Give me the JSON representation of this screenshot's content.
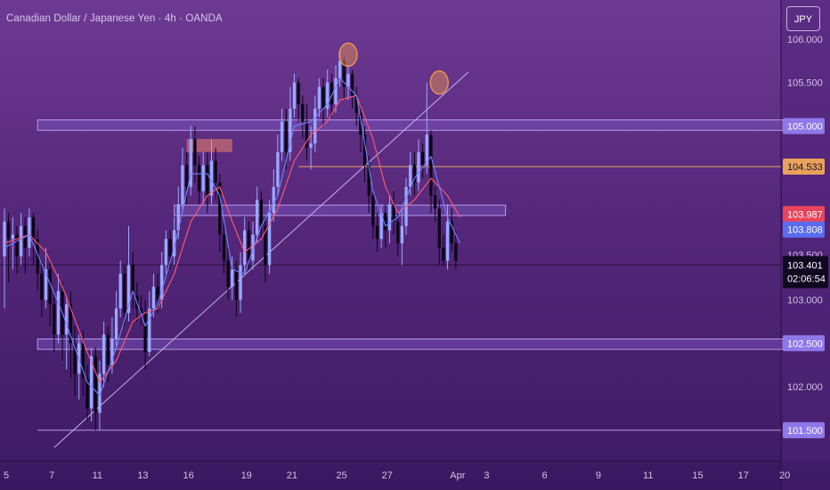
{
  "header": {
    "title": "Canadian Dollar / Japanese Yen · 4h · OANDA",
    "currency": "JPY"
  },
  "colors": {
    "bull": "#9aa8ff",
    "bear": "#0b0616",
    "ma_fast": "#6f86ff",
    "ma_slow": "#ff5b74",
    "zone_fill": "#7e58c6",
    "zone_stroke": "#b49ae8",
    "resistance_fill": "#e07a6a",
    "orange_line": "#e7a45a",
    "trendline": "#c3b2ea",
    "circle": "#f09a4e"
  },
  "chart_data": {
    "type": "candlestick",
    "title": "Canadian Dollar / Japanese Yen · 4h · OANDA",
    "ylim": [
      101.15,
      106.45
    ],
    "y_axis": {
      "unit": "JPY",
      "ticks": [
        {
          "value": 106.0,
          "label": "106.000"
        },
        {
          "value": 105.5,
          "label": "105.500"
        },
        {
          "value": 103.0,
          "label": "103.000"
        },
        {
          "value": 102.0,
          "label": "102.000"
        }
      ],
      "badges": [
        {
          "value": 105.0,
          "label": "105.000",
          "bg": "#8f78e8",
          "fg": "#ffffff"
        },
        {
          "value": 104.533,
          "label": "104.533",
          "bg": "#e8a25a",
          "fg": "#1b0d2a"
        },
        {
          "value": 103.987,
          "label": "103.987",
          "bg": "#e8445c",
          "fg": "#ffffff"
        },
        {
          "value": 103.808,
          "label": "103.808",
          "bg": "#5a6cf0",
          "fg": "#ffffff"
        },
        {
          "value": 102.5,
          "label": "102.500",
          "bg": "#8f78e8",
          "fg": "#ffffff"
        },
        {
          "value": 101.5,
          "label": "101.500",
          "bg": "#8f78e8",
          "fg": "#ffffff"
        }
      ],
      "partial_label": "103.500",
      "current": {
        "value": 103.401,
        "label": "103.401",
        "countdown": "02:06:54"
      }
    },
    "x_axis": {
      "ticks": [
        {
          "label": "5",
          "x": 0
        },
        {
          "label": "7",
          "x": 11
        },
        {
          "label": "11",
          "x": 22
        },
        {
          "label": "13",
          "x": 33
        },
        {
          "label": "16",
          "x": 44
        },
        {
          "label": "19",
          "x": 58
        },
        {
          "label": "21",
          "x": 69
        },
        {
          "label": "25",
          "x": 81
        },
        {
          "label": "27",
          "x": 92
        },
        {
          "label": "Apr",
          "x": 109
        },
        {
          "label": "3",
          "x": 116
        },
        {
          "label": "6",
          "x": 130
        },
        {
          "label": "9",
          "x": 143
        },
        {
          "label": "11",
          "x": 155
        },
        {
          "label": "15",
          "x": 167
        },
        {
          "label": "17",
          "x": 178
        },
        {
          "label": "20",
          "x": 188
        }
      ],
      "range": [
        -2,
        190
      ]
    },
    "candles": [
      [
        103.5,
        103.9,
        104.05,
        102.9
      ],
      [
        103.9,
        103.7,
        104.0,
        103.2
      ],
      [
        103.7,
        103.75,
        103.95,
        103.35
      ],
      [
        103.75,
        103.5,
        103.85,
        103.3
      ],
      [
        103.5,
        103.85,
        104.0,
        103.4
      ],
      [
        103.85,
        103.6,
        103.95,
        103.3
      ],
      [
        103.6,
        103.95,
        104.05,
        103.5
      ],
      [
        103.95,
        103.7,
        104.0,
        103.4
      ],
      [
        103.7,
        103.3,
        103.8,
        103.1
      ],
      [
        103.3,
        103.0,
        103.45,
        102.8
      ],
      [
        103.0,
        103.35,
        103.6,
        102.9
      ],
      [
        103.35,
        102.95,
        103.45,
        102.7
      ],
      [
        102.95,
        102.6,
        103.1,
        102.4
      ],
      [
        102.6,
        103.1,
        103.3,
        102.5
      ],
      [
        103.1,
        102.6,
        103.2,
        102.3
      ],
      [
        102.6,
        102.95,
        103.05,
        102.2
      ],
      [
        102.95,
        102.5,
        103.1,
        102.1
      ],
      [
        102.5,
        102.15,
        102.7,
        101.9
      ],
      [
        102.15,
        102.5,
        102.6,
        101.85
      ],
      [
        102.5,
        102.1,
        102.65,
        101.9
      ],
      [
        102.1,
        101.75,
        102.25,
        101.6
      ],
      [
        101.75,
        102.35,
        102.45,
        101.6
      ],
      [
        102.35,
        101.7,
        102.45,
        101.5
      ],
      [
        101.7,
        102.15,
        102.3,
        101.5
      ],
      [
        102.15,
        102.6,
        102.75,
        102.0
      ],
      [
        102.6,
        102.25,
        102.7,
        102.05
      ],
      [
        102.25,
        102.55,
        102.8,
        102.15
      ],
      [
        102.55,
        102.9,
        103.1,
        102.45
      ],
      [
        102.9,
        103.3,
        103.45,
        102.8
      ],
      [
        103.3,
        102.85,
        103.4,
        102.7
      ],
      [
        102.85,
        103.4,
        103.85,
        102.75
      ],
      [
        103.4,
        103.05,
        103.55,
        102.9
      ],
      [
        103.05,
        102.9,
        103.2,
        102.75
      ],
      [
        102.9,
        102.85,
        103.05,
        102.7
      ],
      [
        102.85,
        102.4,
        103.0,
        102.2
      ],
      [
        102.4,
        102.9,
        103.1,
        102.35
      ],
      [
        102.9,
        103.15,
        103.3,
        102.8
      ],
      [
        103.15,
        103.0,
        103.3,
        102.85
      ],
      [
        103.0,
        103.4,
        103.55,
        102.9
      ],
      [
        103.4,
        103.7,
        103.8,
        103.3
      ],
      [
        103.7,
        103.5,
        103.8,
        103.35
      ],
      [
        103.5,
        103.8,
        103.95,
        103.4
      ],
      [
        103.8,
        104.1,
        104.3,
        103.7
      ],
      [
        104.1,
        104.55,
        104.75,
        104.0
      ],
      [
        104.55,
        104.3,
        104.7,
        104.1
      ],
      [
        104.3,
        104.85,
        105.0,
        104.2
      ],
      [
        104.85,
        104.55,
        105.0,
        104.35
      ],
      [
        104.55,
        104.25,
        104.65,
        104.1
      ],
      [
        104.25,
        104.55,
        104.7,
        104.1
      ],
      [
        104.55,
        104.2,
        104.7,
        104.0
      ],
      [
        104.2,
        104.6,
        104.85,
        104.1
      ],
      [
        104.6,
        104.35,
        104.75,
        104.15
      ],
      [
        104.35,
        103.75,
        104.45,
        103.55
      ],
      [
        103.75,
        103.45,
        103.9,
        103.3
      ],
      [
        103.45,
        103.15,
        103.6,
        103.0
      ],
      [
        103.15,
        103.35,
        103.5,
        103.0
      ],
      [
        103.35,
        103.0,
        103.45,
        102.8
      ],
      [
        103.0,
        103.4,
        103.55,
        102.85
      ],
      [
        103.4,
        103.8,
        103.95,
        103.3
      ],
      [
        103.8,
        103.45,
        103.9,
        103.35
      ],
      [
        103.45,
        103.75,
        103.9,
        103.35
      ],
      [
        103.75,
        104.15,
        104.3,
        103.65
      ],
      [
        104.15,
        103.85,
        104.25,
        103.7
      ],
      [
        103.85,
        103.4,
        103.95,
        103.2
      ],
      [
        103.4,
        104.0,
        104.15,
        103.3
      ],
      [
        104.0,
        104.3,
        104.5,
        103.9
      ],
      [
        104.3,
        104.7,
        104.9,
        104.2
      ],
      [
        104.7,
        105.05,
        105.2,
        104.6
      ],
      [
        105.05,
        104.7,
        105.2,
        104.5
      ],
      [
        104.7,
        105.2,
        105.45,
        104.6
      ],
      [
        105.2,
        105.5,
        105.6,
        105.1
      ],
      [
        105.5,
        105.25,
        105.55,
        105.05
      ],
      [
        105.25,
        105.05,
        105.35,
        104.85
      ],
      [
        105.05,
        104.75,
        105.25,
        104.6
      ],
      [
        104.75,
        104.8,
        105.0,
        104.5
      ],
      [
        104.8,
        105.2,
        105.35,
        104.7
      ],
      [
        105.2,
        105.45,
        105.55,
        105.1
      ],
      [
        105.45,
        105.2,
        105.55,
        105.0
      ],
      [
        105.2,
        105.5,
        105.65,
        105.1
      ],
      [
        105.5,
        105.25,
        105.6,
        105.1
      ],
      [
        105.25,
        105.55,
        105.7,
        105.15
      ],
      [
        105.55,
        105.75,
        105.85,
        105.45
      ],
      [
        105.75,
        105.45,
        105.8,
        105.3
      ],
      [
        105.45,
        105.6,
        105.7,
        105.3
      ],
      [
        105.6,
        105.35,
        105.65,
        105.2
      ],
      [
        105.35,
        105.15,
        105.45,
        105.0
      ],
      [
        105.15,
        104.9,
        105.25,
        104.7
      ],
      [
        104.9,
        104.55,
        105.0,
        104.35
      ],
      [
        104.55,
        104.2,
        104.65,
        104.0
      ],
      [
        104.2,
        103.85,
        104.3,
        103.7
      ],
      [
        103.85,
        103.7,
        104.0,
        103.55
      ],
      [
        103.7,
        104.0,
        104.1,
        103.6
      ],
      [
        104.0,
        103.8,
        104.1,
        103.6
      ],
      [
        103.8,
        104.1,
        104.2,
        103.65
      ],
      [
        104.1,
        103.9,
        104.25,
        103.75
      ],
      [
        103.9,
        103.65,
        104.0,
        103.5
      ],
      [
        103.65,
        103.85,
        104.05,
        103.4
      ],
      [
        103.85,
        104.3,
        104.4,
        103.75
      ],
      [
        104.3,
        104.55,
        104.7,
        104.2
      ],
      [
        104.55,
        104.35,
        104.7,
        104.2
      ],
      [
        104.35,
        104.7,
        104.85,
        104.25
      ],
      [
        104.7,
        104.55,
        104.8,
        104.4
      ],
      [
        104.55,
        104.9,
        105.5,
        104.45
      ],
      [
        104.9,
        104.2,
        104.95,
        104.0
      ],
      [
        104.2,
        104.05,
        104.3,
        103.9
      ],
      [
        104.05,
        103.6,
        104.15,
        103.4
      ],
      [
        103.6,
        103.45,
        103.75,
        103.4
      ],
      [
        103.45,
        103.9,
        104.1,
        103.35
      ],
      [
        103.9,
        103.65,
        104.05,
        103.55
      ],
      [
        103.65,
        103.45,
        103.8,
        103.35
      ]
    ],
    "ma_fast": [
      [
        0,
        103.6
      ],
      [
        6,
        103.75
      ],
      [
        10,
        103.3
      ],
      [
        14,
        102.85
      ],
      [
        20,
        102.05
      ],
      [
        23,
        101.9
      ],
      [
        27,
        102.45
      ],
      [
        31,
        103.1
      ],
      [
        34,
        102.7
      ],
      [
        37,
        102.95
      ],
      [
        41,
        103.6
      ],
      [
        45,
        104.45
      ],
      [
        49,
        104.45
      ],
      [
        52,
        104.2
      ],
      [
        55,
        103.35
      ],
      [
        58,
        103.3
      ],
      [
        62,
        103.85
      ],
      [
        66,
        104.2
      ],
      [
        70,
        105.0
      ],
      [
        74,
        105.05
      ],
      [
        78,
        105.25
      ],
      [
        81,
        105.55
      ],
      [
        85,
        105.35
      ],
      [
        89,
        104.25
      ],
      [
        92,
        103.85
      ],
      [
        95,
        103.95
      ],
      [
        99,
        104.4
      ],
      [
        103,
        104.65
      ],
      [
        107,
        103.95
      ],
      [
        110,
        103.65
      ]
    ],
    "ma_slow": [
      [
        0,
        103.65
      ],
      [
        6,
        103.75
      ],
      [
        10,
        103.55
      ],
      [
        14,
        103.15
      ],
      [
        20,
        102.4
      ],
      [
        23,
        102.05
      ],
      [
        27,
        102.3
      ],
      [
        31,
        102.75
      ],
      [
        34,
        102.85
      ],
      [
        37,
        102.9
      ],
      [
        41,
        103.3
      ],
      [
        45,
        103.9
      ],
      [
        49,
        104.2
      ],
      [
        52,
        104.3
      ],
      [
        55,
        103.9
      ],
      [
        58,
        103.55
      ],
      [
        62,
        103.7
      ],
      [
        66,
        104.05
      ],
      [
        70,
        104.6
      ],
      [
        74,
        104.9
      ],
      [
        78,
        105.05
      ],
      [
        81,
        105.3
      ],
      [
        85,
        105.35
      ],
      [
        89,
        104.85
      ],
      [
        92,
        104.3
      ],
      [
        95,
        104.0
      ],
      [
        99,
        104.15
      ],
      [
        103,
        104.4
      ],
      [
        107,
        104.2
      ],
      [
        110,
        103.95
      ]
    ],
    "zones": [
      {
        "x0": 8,
        "x1": 188,
        "y0": 104.95,
        "y1": 105.07
      },
      {
        "x0": 41,
        "x1": 121,
        "y0": 103.97,
        "y1": 104.09
      },
      {
        "x0": 8,
        "x1": 188,
        "y0": 102.43,
        "y1": 102.55
      }
    ],
    "resistance_box": {
      "x0": 44,
      "x1": 55,
      "y0": 104.7,
      "y1": 104.85
    },
    "horizontal_lines": [
      {
        "value": 104.533,
        "x0": 71,
        "x1": 188,
        "color": "orange"
      },
      {
        "value": 101.5,
        "x0": 8,
        "x1": 188,
        "color": "violet"
      },
      {
        "value": 103.401,
        "x0": -2,
        "x1": 190,
        "color": "dark"
      }
    ],
    "trendline": {
      "x0": 12,
      "y0": 101.3,
      "x1": 112,
      "y1": 105.62
    },
    "highlight_circles": [
      {
        "x": 83,
        "y": 105.82
      },
      {
        "x": 105,
        "y": 105.5
      }
    ]
  }
}
